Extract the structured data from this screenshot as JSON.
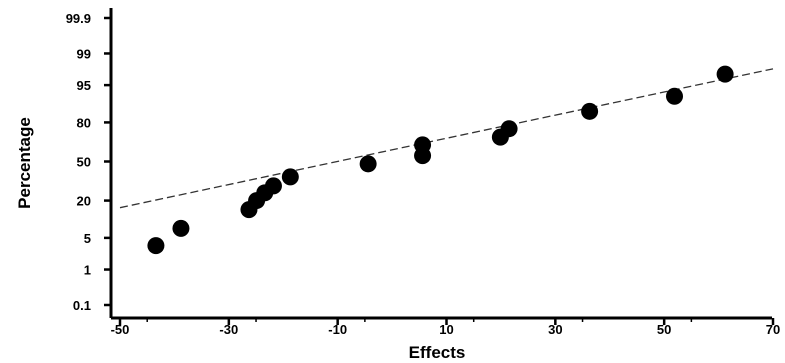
{
  "chart_data": {
    "type": "scatter",
    "title": "",
    "xlabel": "Effects",
    "ylabel": "Percentage",
    "xlim": [
      -50,
      70
    ],
    "x_ticks": [
      -50,
      -30,
      -10,
      10,
      30,
      50,
      70
    ],
    "y_scale": "normal-probability",
    "y_ticks": [
      "0.1",
      "1",
      "5",
      "20",
      "50",
      "80",
      "95",
      "99",
      "99.9"
    ],
    "grid": false,
    "legend": "none",
    "marker_color": "#000000",
    "series": [
      {
        "points": [
          {
            "x": -43.4,
            "y": 3.5
          },
          {
            "x": -38.8,
            "y": 7.5
          },
          {
            "x": -26.3,
            "y": 15
          },
          {
            "x": -24.9,
            "y": 20
          },
          {
            "x": -23.4,
            "y": 25
          },
          {
            "x": -21.8,
            "y": 30
          },
          {
            "x": -18.7,
            "y": 37
          },
          {
            "x": -4.4,
            "y": 48
          },
          {
            "x": 5.6,
            "y": 55
          },
          {
            "x": 5.6,
            "y": 64
          },
          {
            "x": 19.9,
            "y": 70
          },
          {
            "x": 21.5,
            "y": 76
          },
          {
            "x": 36.3,
            "y": 86
          },
          {
            "x": 51.9,
            "y": 92
          },
          {
            "x": 61.2,
            "y": 97
          }
        ]
      }
    ],
    "reference_line": {
      "style": "dashed",
      "x": [
        -50,
        70
      ],
      "y": [
        16,
        97.7
      ]
    }
  }
}
